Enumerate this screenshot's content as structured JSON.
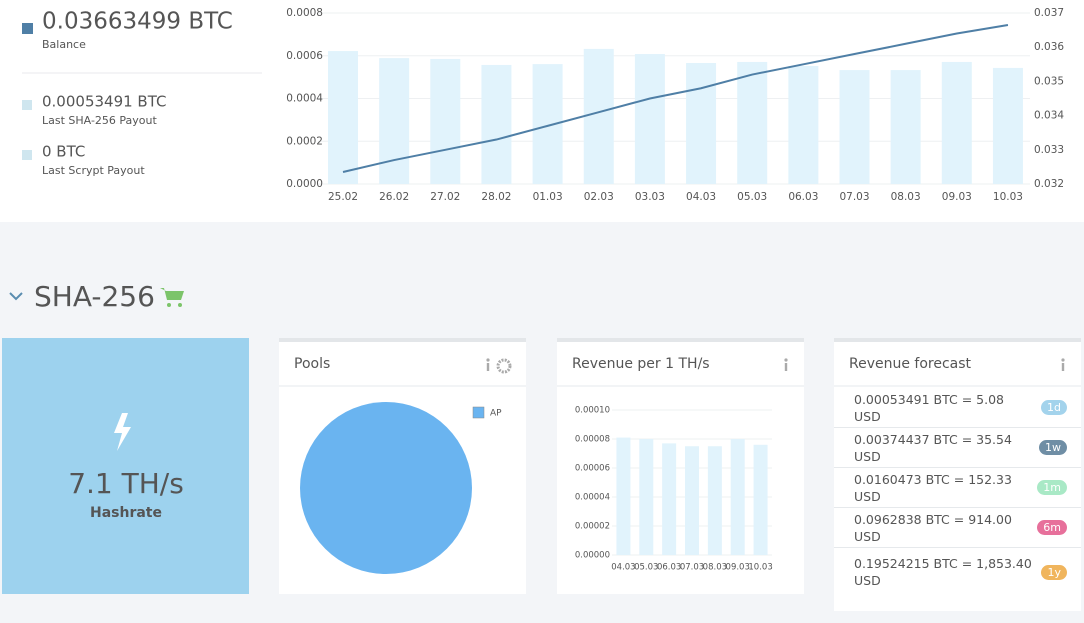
{
  "summary": [
    {
      "value": "0.03663499 BTC",
      "label": "Balance",
      "color": "#4f7fa6"
    },
    {
      "value": "0.00053491 BTC",
      "label": "Last SHA-256 Payout",
      "color": "#cfe6ef"
    },
    {
      "value": "0 BTC",
      "label": "Last Scrypt Payout",
      "color": "#cfe6ef"
    }
  ],
  "balance_chart": {
    "type": "bar-line",
    "categories": [
      "25.02",
      "26.02",
      "27.02",
      "28.02",
      "01.03",
      "02.03",
      "03.03",
      "04.03",
      "05.03",
      "06.03",
      "07.03",
      "08.03",
      "09.03",
      "10.03"
    ],
    "bars": {
      "color": "#e1f3fc",
      "values": [
        0.000622,
        0.000589,
        0.000585,
        0.000557,
        0.000561,
        0.000632,
        0.000608,
        0.000566,
        0.000571,
        0.000552,
        0.000533,
        0.000533,
        0.000571,
        0.000543
      ]
    },
    "line": {
      "color": "#4f7fa6",
      "axis": "y2",
      "values": [
        0.03235,
        0.0327,
        0.033,
        0.0333,
        0.0337,
        0.0341,
        0.0345,
        0.0348,
        0.0352,
        0.0355,
        0.0358,
        0.0361,
        0.0364,
        0.03665
      ]
    },
    "ylim": [
      0,
      0.0008
    ],
    "yticks": [
      {
        "value": 0,
        "label": "0.0000"
      },
      {
        "value": 0.0002,
        "label": "0.0002"
      },
      {
        "value": 0.0004,
        "label": "0.0004"
      },
      {
        "value": 0.0006,
        "label": "0.0006"
      },
      {
        "value": 0.0008,
        "label": "0.0008"
      }
    ],
    "y2lim": [
      0.032,
      0.037
    ],
    "y2ticks": [
      0.032,
      0.033,
      0.034,
      0.035,
      0.036,
      0.037
    ],
    "grid": true
  },
  "section_title": "SHA-256",
  "hashrate": {
    "value": "7.1 TH/s",
    "label": "Hashrate"
  },
  "pools": {
    "title": "Pools",
    "chart": {
      "type": "pie",
      "categories": [
        "AP"
      ],
      "values": [
        100
      ],
      "colors": [
        "#6ab4f0"
      ]
    }
  },
  "revenue": {
    "title": "Revenue per 1 TH/s",
    "chart": {
      "type": "bar",
      "categories": [
        "04.03",
        "05.03",
        "06.03",
        "07.03",
        "08.03",
        "09.03",
        "10.03"
      ],
      "values": [
        8.1e-05,
        8e-05,
        7.7e-05,
        7.5e-05,
        7.5e-05,
        8e-05,
        7.6e-05
      ],
      "color": "#e1f3fc",
      "ylim": [
        0,
        0.0001
      ],
      "yticks": [
        {
          "value": 0,
          "label": "0.00000"
        },
        {
          "value": 2e-05,
          "label": "0.00002"
        },
        {
          "value": 4e-05,
          "label": "0.00004"
        },
        {
          "value": 6e-05,
          "label": "0.00006"
        },
        {
          "value": 8e-05,
          "label": "0.00008"
        },
        {
          "value": 0.0001,
          "label": "0.00010"
        }
      ],
      "grid": true
    }
  },
  "forecast": {
    "title": "Revenue forecast",
    "rows": [
      {
        "text": "0.00053491 BTC = 5.08 USD",
        "badge": "1d",
        "color": "#a3d3ec"
      },
      {
        "text": "0.00374437 BTC = 35.54 USD",
        "badge": "1w",
        "color": "#6f8ea5"
      },
      {
        "text": "0.0160473 BTC = 152.33 USD",
        "badge": "1m",
        "color": "#a9e9c6"
      },
      {
        "text": "0.0962838 BTC = 914.00 USD",
        "badge": "6m",
        "color": "#e7709b"
      },
      {
        "text": "0.19524215 BTC = 1,853.40 USD",
        "badge": "1y",
        "color": "#f0b55d"
      }
    ]
  }
}
